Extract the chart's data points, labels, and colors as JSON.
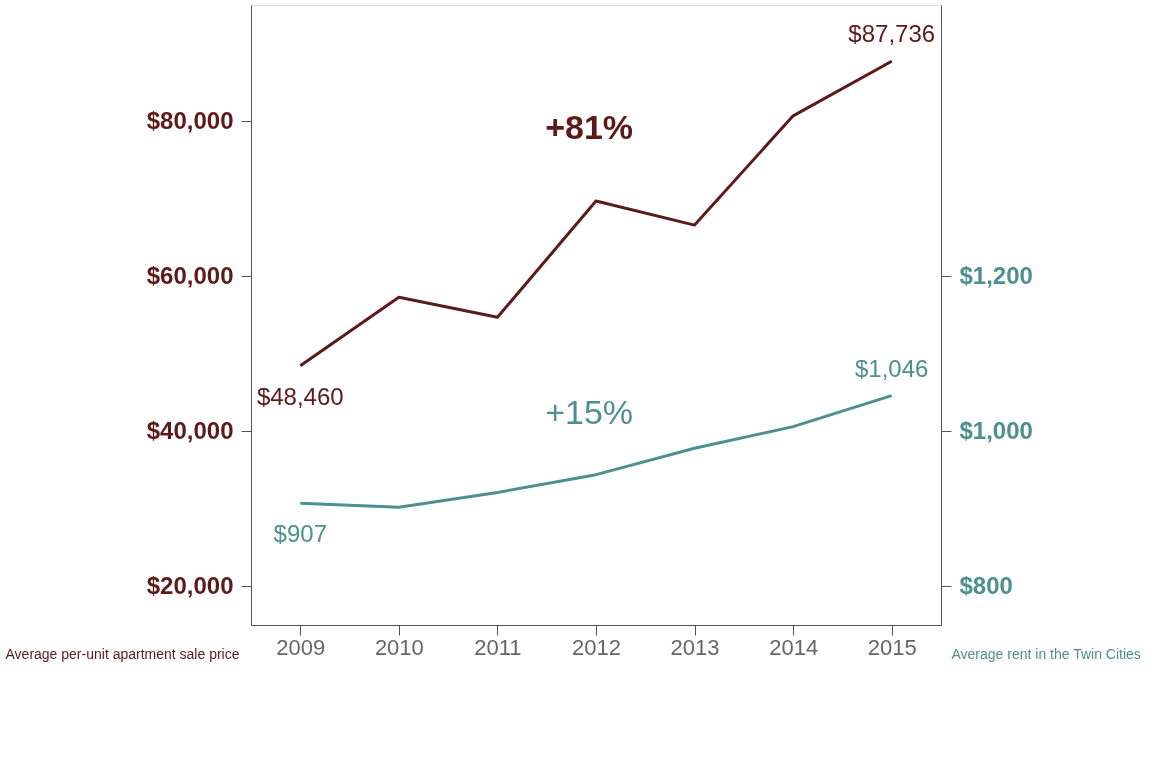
{
  "chart_data": {
    "type": "line",
    "categories": [
      "2009",
      "2010",
      "2011",
      "2012",
      "2013",
      "2014",
      "2015"
    ],
    "series": [
      {
        "color": "#5c1a1a",
        "values": [
          48460,
          57300,
          54700,
          69700,
          66600,
          80700,
          87736
        ],
        "value_labels": [
          "$48,460",
          null,
          null,
          null,
          null,
          null,
          "$87,736"
        ]
      },
      {
        "color": "#4e8f8f",
        "axis": "y2",
        "values": [
          907,
          902,
          921,
          944,
          978,
          1006,
          1046
        ],
        "value_labels": [
          "$907",
          null,
          null,
          null,
          null,
          null,
          "$1,046"
        ]
      }
    ],
    "ylabel": "Average per-unit apartment sale price",
    "y2label": "Average rent in the Twin Cities",
    "ylim": [
      15000,
      95000
    ],
    "yticks": [
      {
        "value": 20000,
        "label": "$20,000"
      },
      {
        "value": 40000,
        "label": "$40,000"
      },
      {
        "value": 60000,
        "label": "$60,000"
      },
      {
        "value": 80000,
        "label": "$80,000"
      }
    ],
    "y2lim": [
      750,
      1550
    ],
    "y2ticks": [
      {
        "value": 800,
        "label": "$800"
      },
      {
        "value": 1000,
        "label": "$1,000"
      },
      {
        "value": 1200,
        "label": "$1,200"
      }
    ],
    "annotations": [
      "+81%",
      "+15%"
    ],
    "grid": false
  }
}
